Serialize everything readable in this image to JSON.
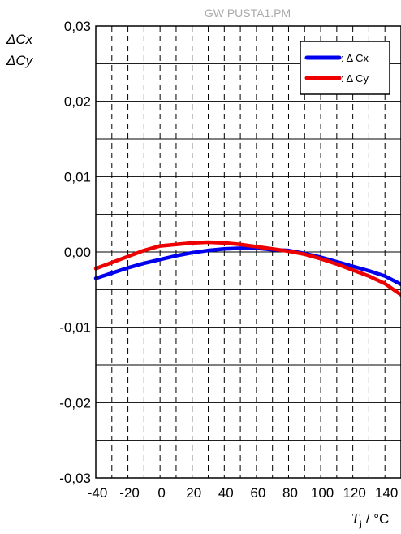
{
  "watermark": "GW PUSTA1.PM",
  "chart_data": {
    "type": "line",
    "title": "",
    "xlabel": "Tj / °C",
    "xlabel_main": "T",
    "xlabel_sub": "j",
    "xlabel_unit": " / °C",
    "ylabel_line1": "ΔCx",
    "ylabel_line2": "ΔCy",
    "xlim": [
      -40,
      150
    ],
    "ylim": [
      -0.03,
      0.03
    ],
    "x_ticks": [
      -40,
      -20,
      0,
      20,
      40,
      60,
      80,
      100,
      120,
      140
    ],
    "x_tick_labels": [
      "-40",
      "-20",
      "0",
      "20",
      "40",
      "60",
      "80",
      "100",
      "120",
      "140"
    ],
    "y_ticks": [
      -0.03,
      -0.02,
      -0.01,
      0.0,
      0.01,
      0.02,
      0.03
    ],
    "y_tick_labels": [
      "-0,03",
      "-0,02",
      "-0,01",
      "0,00",
      "0,01",
      "0,02",
      "0,03"
    ],
    "grid": true,
    "legend_position": "top-right",
    "series": [
      {
        "name": ": Δ Cx",
        "color": "#0000ee",
        "x": [
          -40,
          -30,
          -20,
          -10,
          0,
          10,
          20,
          30,
          40,
          50,
          60,
          70,
          80,
          90,
          100,
          110,
          120,
          130,
          140,
          150
        ],
        "y": [
          -0.0035,
          -0.0028,
          -0.0021,
          -0.0015,
          -0.001,
          -0.0005,
          -0.0001,
          0.0002,
          0.0004,
          0.0005,
          0.0005,
          0.0003,
          0.0002,
          -0.0002,
          -0.0007,
          -0.0013,
          -0.0019,
          -0.0025,
          -0.0032,
          -0.0043
        ]
      },
      {
        "name": ": Δ Cy",
        "color": "#ee0000",
        "x": [
          -40,
          -30,
          -20,
          -10,
          0,
          10,
          20,
          30,
          40,
          50,
          60,
          70,
          80,
          90,
          100,
          110,
          120,
          130,
          140,
          150
        ],
        "y": [
          -0.0022,
          -0.0014,
          -0.0006,
          0.0002,
          0.0008,
          0.001,
          0.0012,
          0.0013,
          0.0012,
          0.001,
          0.0007,
          0.0004,
          0.0001,
          -0.0003,
          -0.0009,
          -0.0016,
          -0.0024,
          -0.0032,
          -0.0042,
          -0.0057
        ]
      }
    ]
  }
}
